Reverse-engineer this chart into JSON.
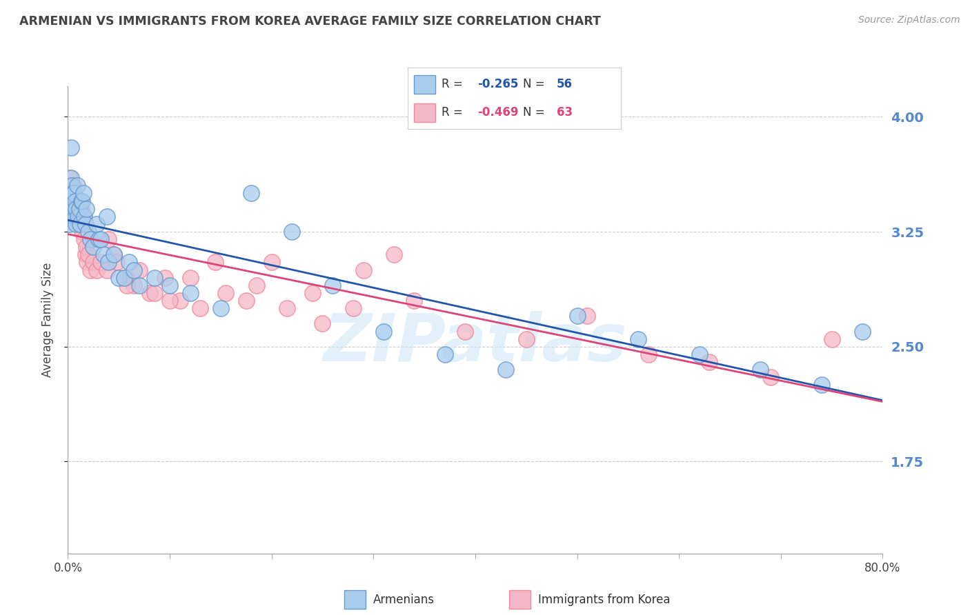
{
  "title": "ARMENIAN VS IMMIGRANTS FROM KOREA AVERAGE FAMILY SIZE CORRELATION CHART",
  "source": "Source: ZipAtlas.com",
  "ylabel": "Average Family Size",
  "xlim": [
    0.0,
    0.8
  ],
  "ylim": [
    1.15,
    4.2
  ],
  "yticks": [
    1.75,
    2.5,
    3.25,
    4.0
  ],
  "series1_name": "Armenians",
  "series1_face_color": "#aacced",
  "series1_edge_color": "#6699cc",
  "series1_line_color": "#2255aa",
  "series1_R": -0.265,
  "series1_N": 56,
  "series2_name": "Immigrants from Korea",
  "series2_face_color": "#f5b8c8",
  "series2_edge_color": "#ee8899",
  "series2_line_color": "#dd4477",
  "series2_R": -0.469,
  "series2_N": 63,
  "background_color": "#ffffff",
  "grid_color": "#cccccc",
  "axis_label_color": "#5588cc",
  "title_color": "#444444",
  "text_color": "#333333",
  "watermark_color": "#d0e8f5",
  "armenians_x": [
    0.001,
    0.002,
    0.002,
    0.003,
    0.003,
    0.004,
    0.004,
    0.005,
    0.005,
    0.006,
    0.006,
    0.007,
    0.007,
    0.008,
    0.008,
    0.009,
    0.01,
    0.011,
    0.012,
    0.013,
    0.014,
    0.015,
    0.016,
    0.017,
    0.018,
    0.02,
    0.022,
    0.025,
    0.03,
    0.035,
    0.04,
    0.05,
    0.06,
    0.07,
    0.085,
    0.1,
    0.12,
    0.15,
    0.18,
    0.22,
    0.26,
    0.31,
    0.37,
    0.43,
    0.5,
    0.56,
    0.62,
    0.68,
    0.74,
    0.78,
    0.028,
    0.032,
    0.038,
    0.045,
    0.055,
    0.065
  ],
  "armenians_y": [
    3.3,
    3.45,
    3.5,
    3.6,
    3.8,
    3.4,
    3.55,
    3.35,
    3.5,
    3.4,
    3.5,
    3.35,
    3.45,
    3.3,
    3.4,
    3.55,
    3.35,
    3.4,
    3.3,
    3.45,
    3.45,
    3.5,
    3.35,
    3.3,
    3.4,
    3.25,
    3.2,
    3.15,
    3.2,
    3.1,
    3.05,
    2.95,
    3.05,
    2.9,
    2.95,
    2.9,
    2.85,
    2.75,
    3.5,
    3.25,
    2.9,
    2.6,
    2.45,
    2.35,
    2.7,
    2.55,
    2.45,
    2.35,
    2.25,
    2.6,
    3.3,
    3.2,
    3.35,
    3.1,
    2.95,
    3.0
  ],
  "korea_x": [
    0.001,
    0.002,
    0.002,
    0.003,
    0.003,
    0.004,
    0.005,
    0.005,
    0.006,
    0.006,
    0.007,
    0.008,
    0.008,
    0.009,
    0.01,
    0.011,
    0.012,
    0.013,
    0.014,
    0.015,
    0.016,
    0.017,
    0.018,
    0.019,
    0.02,
    0.022,
    0.025,
    0.028,
    0.032,
    0.038,
    0.045,
    0.055,
    0.065,
    0.08,
    0.095,
    0.11,
    0.13,
    0.155,
    0.185,
    0.215,
    0.25,
    0.29,
    0.34,
    0.39,
    0.45,
    0.51,
    0.57,
    0.63,
    0.69,
    0.75,
    0.04,
    0.048,
    0.058,
    0.07,
    0.085,
    0.1,
    0.12,
    0.145,
    0.175,
    0.2,
    0.24,
    0.28,
    0.32
  ],
  "korea_y": [
    3.45,
    3.5,
    3.6,
    3.45,
    3.55,
    3.5,
    3.4,
    3.55,
    3.45,
    3.5,
    3.35,
    3.45,
    3.35,
    3.4,
    3.45,
    3.3,
    3.35,
    3.4,
    3.25,
    3.35,
    3.2,
    3.1,
    3.15,
    3.05,
    3.1,
    3.0,
    3.05,
    3.0,
    3.05,
    3.0,
    3.1,
    2.95,
    2.9,
    2.85,
    2.95,
    2.8,
    2.75,
    2.85,
    2.9,
    2.75,
    2.65,
    3.0,
    2.8,
    2.6,
    2.55,
    2.7,
    2.45,
    2.4,
    2.3,
    2.55,
    3.2,
    3.05,
    2.9,
    3.0,
    2.85,
    2.8,
    2.95,
    3.05,
    2.8,
    3.05,
    2.85,
    2.75,
    3.1
  ]
}
